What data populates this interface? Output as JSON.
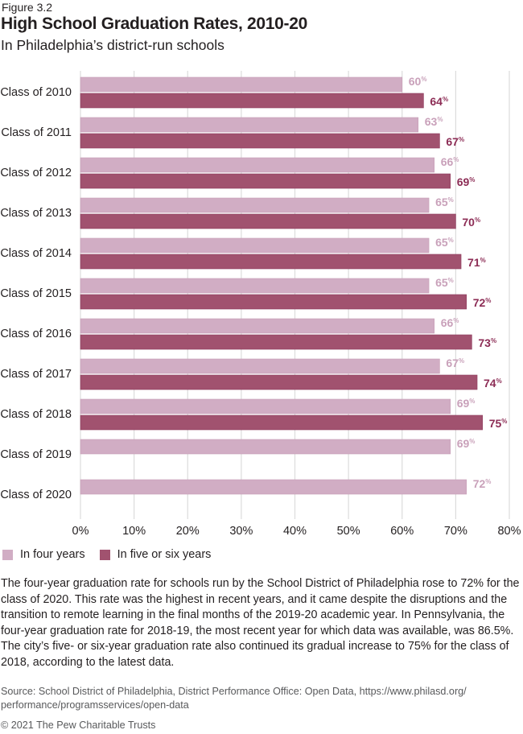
{
  "header": {
    "figure_label": "Figure 3.2",
    "title": "High School Graduation Rates, 2010-20",
    "subtitle": "In Philadelphia’s district-run schools"
  },
  "colors": {
    "four_years": "#d1adc4",
    "five_six_years": "#a1526f",
    "four_years_label": "#c9a1ba",
    "five_six_years_label": "#8c2c55",
    "gridline": "#dcdcdc"
  },
  "chart_data": {
    "type": "bar",
    "orientation": "horizontal",
    "title": "High School Graduation Rates, 2010-20",
    "subtitle": "In Philadelphia’s district-run schools",
    "xlabel": "",
    "ylabel": "",
    "xlim": [
      0,
      80
    ],
    "x_ticks": [
      0,
      10,
      20,
      30,
      40,
      50,
      60,
      70,
      80
    ],
    "x_tick_labels": [
      "0%",
      "10%",
      "20%",
      "30%",
      "40%",
      "50%",
      "60%",
      "70%",
      "80%"
    ],
    "grid": true,
    "legend_position": "bottom-left",
    "categories": [
      "Class of 2010",
      "Class of 2011",
      "Class of 2012",
      "Class of 2013",
      "Class of 2014",
      "Class of 2015",
      "Class of 2016",
      "Class of 2017",
      "Class of 2018",
      "Class of 2019",
      "Class of 2020"
    ],
    "series": [
      {
        "name": "In four years",
        "values": [
          60,
          63,
          66,
          65,
          65,
          65,
          66,
          67,
          69,
          69,
          72
        ]
      },
      {
        "name": "In five or six years",
        "values": [
          64,
          67,
          69,
          70,
          71,
          72,
          73,
          74,
          75,
          null,
          null
        ]
      }
    ],
    "value_suffix": "%"
  },
  "note": "The four-year graduation rate for schools run by the School District of Philadelphia rose to 72% for the class of 2020. This rate was the highest in recent years, and it came despite the disruptions and the transition to remote learning in the final months of the 2019-20 academic year. In Pennsylvania, the four-year graduation rate for 2018-19, the most recent year for which data was available, was 86.5%. The city’s five- or six-year graduation rate also continued its gradual increase to 75% for the class of 2018, according to the latest data.",
  "source": "Source: School District of Philadelphia, District Performance Office: Open Data, https://www.philasd.org/ performance/programsservices/open-data",
  "copyright": "© 2021 The Pew Charitable Trusts"
}
